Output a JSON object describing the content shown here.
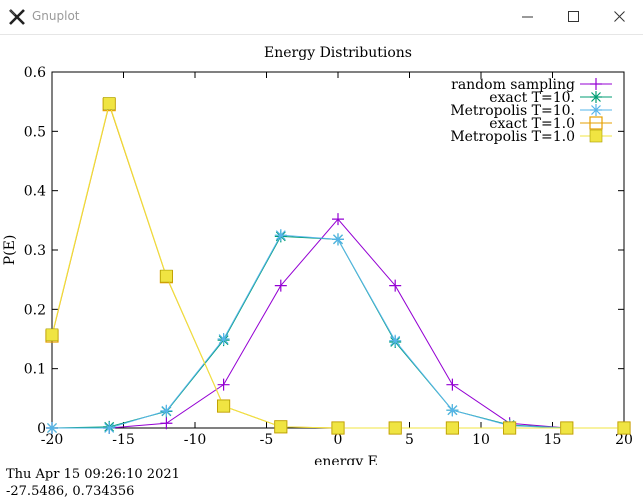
{
  "window": {
    "title": "Gnuplot",
    "icon": "gnuplot-x-icon",
    "controls": [
      "minimize-icon",
      "maximize-icon",
      "close-icon"
    ]
  },
  "status": {
    "timestamp": "Thu Apr 15 09:26:10 2021",
    "coordinates": "-27.5486,  0.734356"
  },
  "chart_data": {
    "type": "line",
    "title": "Energy Distributions",
    "xlabel": "energy E",
    "ylabel": "P(E)",
    "xlim": [
      -20,
      20
    ],
    "ylim": [
      0,
      0.6
    ],
    "xticks": [
      -20,
      -15,
      -10,
      -5,
      0,
      5,
      10,
      15,
      20
    ],
    "yticks": [
      0,
      0.1,
      0.2,
      0.3,
      0.4,
      0.5,
      0.6
    ],
    "grid": false,
    "legend_position": "top-right",
    "series": [
      {
        "name": "random sampling",
        "color": "#9400d3",
        "marker": "plus",
        "x": [
          -20,
          -16,
          -12,
          -8,
          -4,
          0,
          4,
          8,
          12,
          16,
          20
        ],
        "y": [
          0.0,
          0.0,
          0.008,
          0.073,
          0.24,
          0.352,
          0.24,
          0.073,
          0.008,
          0.0,
          0.0
        ]
      },
      {
        "name": "exact T=10.",
        "color": "#009e73",
        "marker": "star",
        "x": [
          -20,
          -16,
          -12,
          -8,
          -4,
          0,
          4,
          8,
          12,
          16,
          20
        ],
        "y": [
          0.0,
          0.002,
          0.028,
          0.148,
          0.323,
          0.318,
          0.145,
          0.03,
          0.005,
          0.0,
          0.0
        ]
      },
      {
        "name": "Metropolis T=10.",
        "color": "#56b4e9",
        "marker": "star",
        "x": [
          -20,
          -16,
          -12,
          -8,
          -4,
          0,
          4,
          8,
          12,
          16,
          20
        ],
        "y": [
          0.0,
          0.0,
          0.029,
          0.15,
          0.325,
          0.318,
          0.147,
          0.03,
          0.004,
          0.0,
          0.0
        ]
      },
      {
        "name": "exact T=1.0",
        "color": "#e69f00",
        "marker": "open-square",
        "x": [
          -20,
          -16,
          -12,
          -8,
          -4,
          0,
          4,
          8,
          12,
          16,
          20
        ],
        "y": [
          0.155,
          0.545,
          0.255,
          0.037,
          0.002,
          0.0,
          0.0,
          0.0,
          0.0,
          0.0,
          0.0
        ]
      },
      {
        "name": "Metropolis T=1.0",
        "color": "#f0e442",
        "marker": "filled-square",
        "x": [
          -20,
          -16,
          -12,
          -8,
          -4,
          0,
          4,
          8,
          12,
          16,
          20
        ],
        "y": [
          0.157,
          0.547,
          0.256,
          0.037,
          0.002,
          0.0,
          0.0,
          0.0,
          0.0,
          0.0,
          0.0
        ]
      }
    ]
  }
}
